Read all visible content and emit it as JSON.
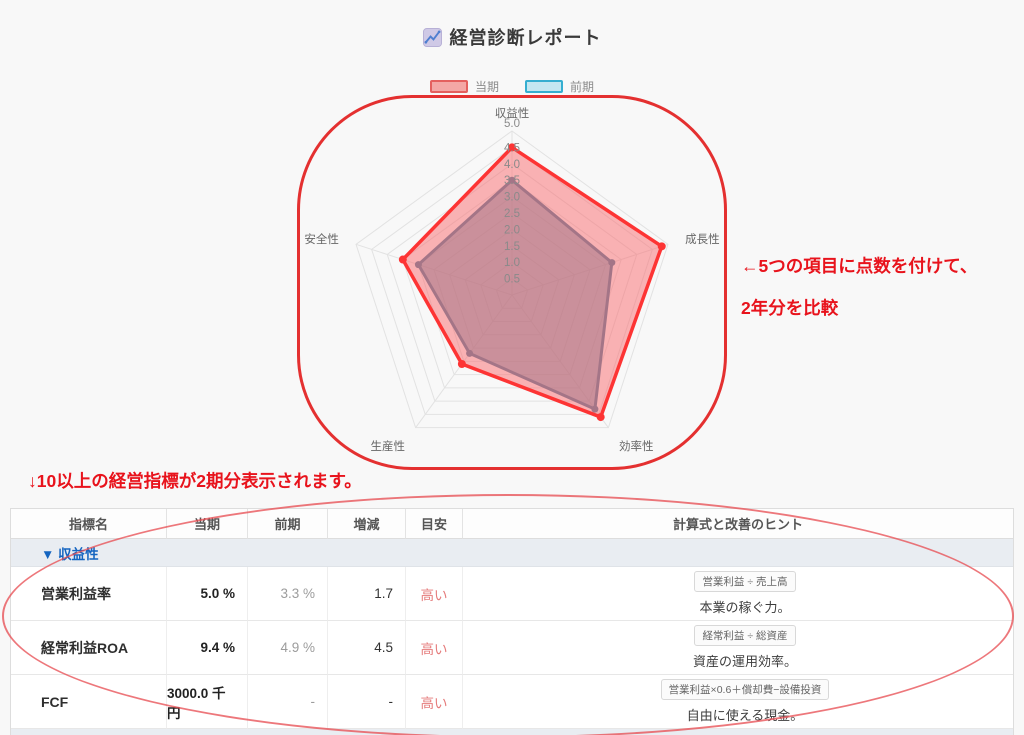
{
  "header": {
    "title": "経営診断レポート"
  },
  "legend": [
    {
      "label": "当期",
      "fill": "#f4a7a5",
      "border": "#e4605e"
    },
    {
      "label": "前期",
      "fill": "#c3e7f1",
      "border": "#35aed0"
    }
  ],
  "chart_data": {
    "type": "radar",
    "categories": [
      "収益性",
      "成長性",
      "効率性",
      "生産性",
      "安全性"
    ],
    "series": [
      {
        "name": "当期",
        "values": [
          4.5,
          4.8,
          4.6,
          2.6,
          3.5
        ],
        "stroke": "#fd3434",
        "fill": "rgba(250,105,110,0.5)",
        "point_r": 4,
        "width": 3.5
      },
      {
        "name": "前期",
        "values": [
          3.5,
          3.2,
          4.3,
          2.2,
          3.0
        ],
        "stroke": "#4e81a0",
        "fill": "rgba(78,129,160,0.55)",
        "point_r": 3.5,
        "width": 3
      }
    ],
    "rmin": 0,
    "rmax": 5,
    "tick_step": 0.5,
    "ticks": [
      "0.5",
      "1.0",
      "1.5",
      "2.0",
      "2.5",
      "3.0",
      "3.5",
      "4.0",
      "4.5",
      "5.0"
    ],
    "grid": true,
    "grid_color": "#e2e2e2",
    "tick_color": "#8a8a8a",
    "axis_label_color": "#666",
    "legend_position": "top"
  },
  "annotations": {
    "chart_note_line1": "←5つの項目に点数を付けて、",
    "chart_note_line2": "2年分を比較",
    "table_note": "↓10以上の経営指標が2期分表示されます。"
  },
  "table": {
    "headers": [
      "指標名",
      "当期",
      "前期",
      "増減",
      "目安",
      "計算式と改善のヒント"
    ],
    "section": "▼ 収益性",
    "rows": [
      {
        "name": "営業利益率",
        "current": "5.0 %",
        "previous": "3.3 %",
        "change": "1.7",
        "guide": "高い",
        "formula": "営業利益 ÷ 売上高",
        "hint": "本業の稼ぐ力。"
      },
      {
        "name": "経常利益ROA",
        "current": "9.4 %",
        "previous": "4.9 %",
        "change": "4.5",
        "guide": "高い",
        "formula": "経常利益 ÷ 総資産",
        "hint": "資産の運用効率。"
      },
      {
        "name": "FCF",
        "current": "3000.0 千円",
        "previous": "-",
        "change": "-",
        "guide": "高い",
        "formula": "営業利益×0.6＋償却費−設備投資",
        "hint": "自由に使える現金。"
      }
    ]
  }
}
